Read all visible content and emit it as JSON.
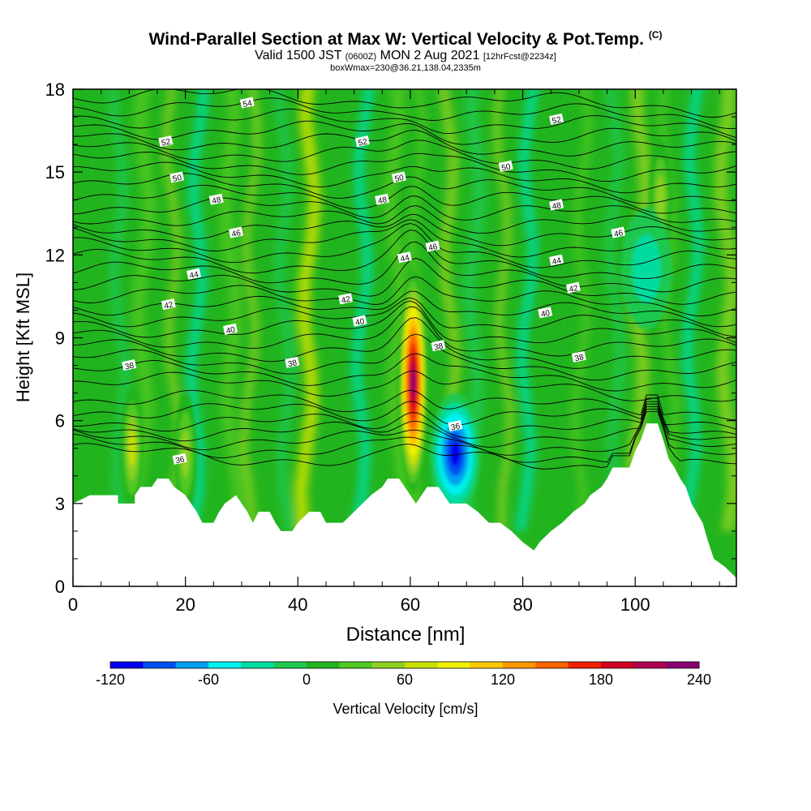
{
  "title": {
    "main": "Wind-Parallel Section at Max W: Vertical Velocity & Pot.Temp.",
    "copyright": "(C)",
    "valid_prefix": "Valid 1500 JST",
    "valid_zulu": "(0600Z)",
    "valid_date": "MON 2 Aug 2021",
    "forecast": "[12hrFcst@2234z]",
    "box_info": "boxWmax=230@36.21,138.04,2335m"
  },
  "colors": {
    "background": "#22b41e",
    "terrain": "#ffffff"
  },
  "chart_data": {
    "type": "heatmap",
    "xlabel": "Distance [nm]",
    "ylabel": "Height [Kft MSL]",
    "xlim": [
      0,
      118
    ],
    "ylim": [
      0,
      18
    ],
    "x_ticks": [
      "0",
      "20",
      "40",
      "60",
      "80",
      "100"
    ],
    "y_ticks": [
      "0",
      "3",
      "6",
      "9",
      "12",
      "15",
      "18"
    ],
    "colorbar": {
      "label": "Vertical Velocity [cm/s]",
      "tick_labels": [
        "-120",
        "-60",
        "0",
        "60",
        "120",
        "180",
        "240"
      ],
      "bins": [
        -120,
        -100,
        -80,
        -60,
        -40,
        -20,
        0,
        20,
        40,
        60,
        80,
        100,
        120,
        140,
        160,
        180,
        200,
        220,
        240
      ],
      "colors": [
        "#0000f0",
        "#0050f0",
        "#00a0f0",
        "#00f0f0",
        "#00dca0",
        "#1ec850",
        "#22b41e",
        "#50c820",
        "#8cd020",
        "#c8e000",
        "#f0f000",
        "#ffc800",
        "#ff9600",
        "#ff6400",
        "#f02000",
        "#d00020",
        "#b00050",
        "#8c0070"
      ]
    },
    "terrain": [
      [
        0,
        3.0
      ],
      [
        3,
        3.3
      ],
      [
        8,
        3.3
      ],
      [
        8,
        3.0
      ],
      [
        11,
        3.0
      ],
      [
        11,
        3.3
      ],
      [
        12,
        3.6
      ],
      [
        14,
        3.6
      ],
      [
        15,
        3.9
      ],
      [
        17,
        3.9
      ],
      [
        18,
        3.6
      ],
      [
        20,
        3.3
      ],
      [
        21,
        3.0
      ],
      [
        22,
        2.7
      ],
      [
        23,
        2.3
      ],
      [
        25,
        2.3
      ],
      [
        26,
        2.7
      ],
      [
        27,
        3.0
      ],
      [
        29,
        3.3
      ],
      [
        30,
        3.0
      ],
      [
        31,
        2.7
      ],
      [
        32,
        2.3
      ],
      [
        33,
        2.7
      ],
      [
        35,
        2.7
      ],
      [
        36,
        2.3
      ],
      [
        37,
        2.0
      ],
      [
        39,
        2.0
      ],
      [
        40,
        2.3
      ],
      [
        42,
        2.7
      ],
      [
        44,
        2.7
      ],
      [
        45,
        2.3
      ],
      [
        48,
        2.3
      ],
      [
        50,
        2.7
      ],
      [
        53,
        3.3
      ],
      [
        55,
        3.6
      ],
      [
        56,
        3.9
      ],
      [
        58,
        3.9
      ],
      [
        59,
        3.6
      ],
      [
        60,
        3.3
      ],
      [
        61,
        3.0
      ],
      [
        62,
        3.3
      ],
      [
        63,
        3.6
      ],
      [
        65,
        3.6
      ],
      [
        66,
        3.3
      ],
      [
        67,
        3.0
      ],
      [
        70,
        3.0
      ],
      [
        72,
        2.7
      ],
      [
        74,
        2.3
      ],
      [
        76,
        2.3
      ],
      [
        78,
        2.0
      ],
      [
        80,
        1.6
      ],
      [
        82,
        1.3
      ],
      [
        83,
        1.6
      ],
      [
        85,
        2.0
      ],
      [
        87,
        2.3
      ],
      [
        89,
        2.7
      ],
      [
        91,
        3.0
      ],
      [
        92,
        3.3
      ],
      [
        94,
        3.6
      ],
      [
        95,
        3.9
      ],
      [
        96,
        4.3
      ],
      [
        99,
        4.3
      ],
      [
        100,
        4.9
      ],
      [
        101,
        5.3
      ],
      [
        102,
        5.9
      ],
      [
        104,
        5.9
      ],
      [
        105,
        5.3
      ],
      [
        106,
        4.6
      ],
      [
        107,
        4.3
      ],
      [
        108,
        3.9
      ],
      [
        109,
        3.6
      ],
      [
        110,
        3.0
      ],
      [
        112,
        2.3
      ],
      [
        113,
        1.6
      ],
      [
        114,
        1.0
      ],
      [
        116,
        0.7
      ],
      [
        118,
        0.3
      ]
    ],
    "updrafts": [
      {
        "x": 60.5,
        "y": 7.4,
        "peak_wspeed": 230
      },
      {
        "x": 10.5,
        "y": 5.0,
        "peak_wspeed": 70
      },
      {
        "x": 20,
        "y": 4.8,
        "peak_wspeed": 60
      },
      {
        "x": 104.5,
        "y": 14.0,
        "peak_wspeed": 60
      }
    ],
    "downdrafts": [
      {
        "x": 68,
        "y": 4.8,
        "peak_wspeed": -110
      },
      {
        "x": 102,
        "y": 11.5,
        "peak_wspeed": -40
      }
    ],
    "theta_contours": [
      {
        "label": "36",
        "levels_y": [
          4.6,
          4.9,
          5.2,
          5.5,
          5.8,
          6.2,
          6.6
        ],
        "slope": 0.15
      },
      {
        "label": "38",
        "levels_y": [
          7.2,
          7.6,
          8.0,
          8.4,
          8.8
        ],
        "slope": 0.1
      },
      {
        "label": "40",
        "levels_y": [
          9.2,
          9.6
        ],
        "slope": 0.1
      },
      {
        "label": "42",
        "levels_y": [
          10.0,
          10.4,
          10.8
        ],
        "slope": 0.08
      },
      {
        "label": "44",
        "levels_y": [
          11.2,
          11.6,
          12.0
        ],
        "slope": 0.06
      },
      {
        "label": "46",
        "levels_y": [
          12.4,
          12.8,
          13.2
        ],
        "slope": 0.05
      },
      {
        "label": "48",
        "levels_y": [
          13.6,
          14.0,
          14.4
        ],
        "slope": 0.04
      },
      {
        "label": "50",
        "levels_y": [
          14.8,
          15.2,
          15.6
        ],
        "slope": 0.03
      },
      {
        "label": "52",
        "levels_y": [
          16.0,
          16.4,
          16.8
        ],
        "slope": 0.02
      },
      {
        "label": "54",
        "levels_y": [
          17.2,
          17.6
        ],
        "slope": 0.01
      }
    ],
    "contour_labels": [
      {
        "text": "54",
        "x": 31,
        "y": 17.5
      },
      {
        "text": "52",
        "x": 16.5,
        "y": 16.1
      },
      {
        "text": "52",
        "x": 51.5,
        "y": 16.1
      },
      {
        "text": "52",
        "x": 86,
        "y": 16.9
      },
      {
        "text": "50",
        "x": 18.5,
        "y": 14.8
      },
      {
        "text": "50",
        "x": 58,
        "y": 14.8
      },
      {
        "text": "50",
        "x": 77,
        "y": 15.2
      },
      {
        "text": "48",
        "x": 25.5,
        "y": 14.0
      },
      {
        "text": "48",
        "x": 55,
        "y": 14.0
      },
      {
        "text": "48",
        "x": 86,
        "y": 13.8
      },
      {
        "text": "46",
        "x": 29,
        "y": 12.8
      },
      {
        "text": "46",
        "x": 64,
        "y": 12.3
      },
      {
        "text": "46",
        "x": 97,
        "y": 12.8
      },
      {
        "text": "44",
        "x": 21.5,
        "y": 11.3
      },
      {
        "text": "44",
        "x": 59,
        "y": 11.9
      },
      {
        "text": "44",
        "x": 86,
        "y": 11.8
      },
      {
        "text": "42",
        "x": 17,
        "y": 10.2
      },
      {
        "text": "42",
        "x": 48.5,
        "y": 10.4
      },
      {
        "text": "42",
        "x": 89,
        "y": 10.8
      },
      {
        "text": "40",
        "x": 28,
        "y": 9.3
      },
      {
        "text": "40",
        "x": 51,
        "y": 9.6
      },
      {
        "text": "40",
        "x": 84,
        "y": 9.9
      },
      {
        "text": "38",
        "x": 10,
        "y": 8.0
      },
      {
        "text": "38",
        "x": 39,
        "y": 8.1
      },
      {
        "text": "38",
        "x": 65,
        "y": 8.7
      },
      {
        "text": "38",
        "x": 90,
        "y": 8.3
      },
      {
        "text": "36",
        "x": 68,
        "y": 5.8
      },
      {
        "text": "36",
        "x": 19,
        "y": 4.6
      }
    ]
  },
  "page_text": {
    "colorbar_label": "Vertical Velocity [cm/s]"
  }
}
